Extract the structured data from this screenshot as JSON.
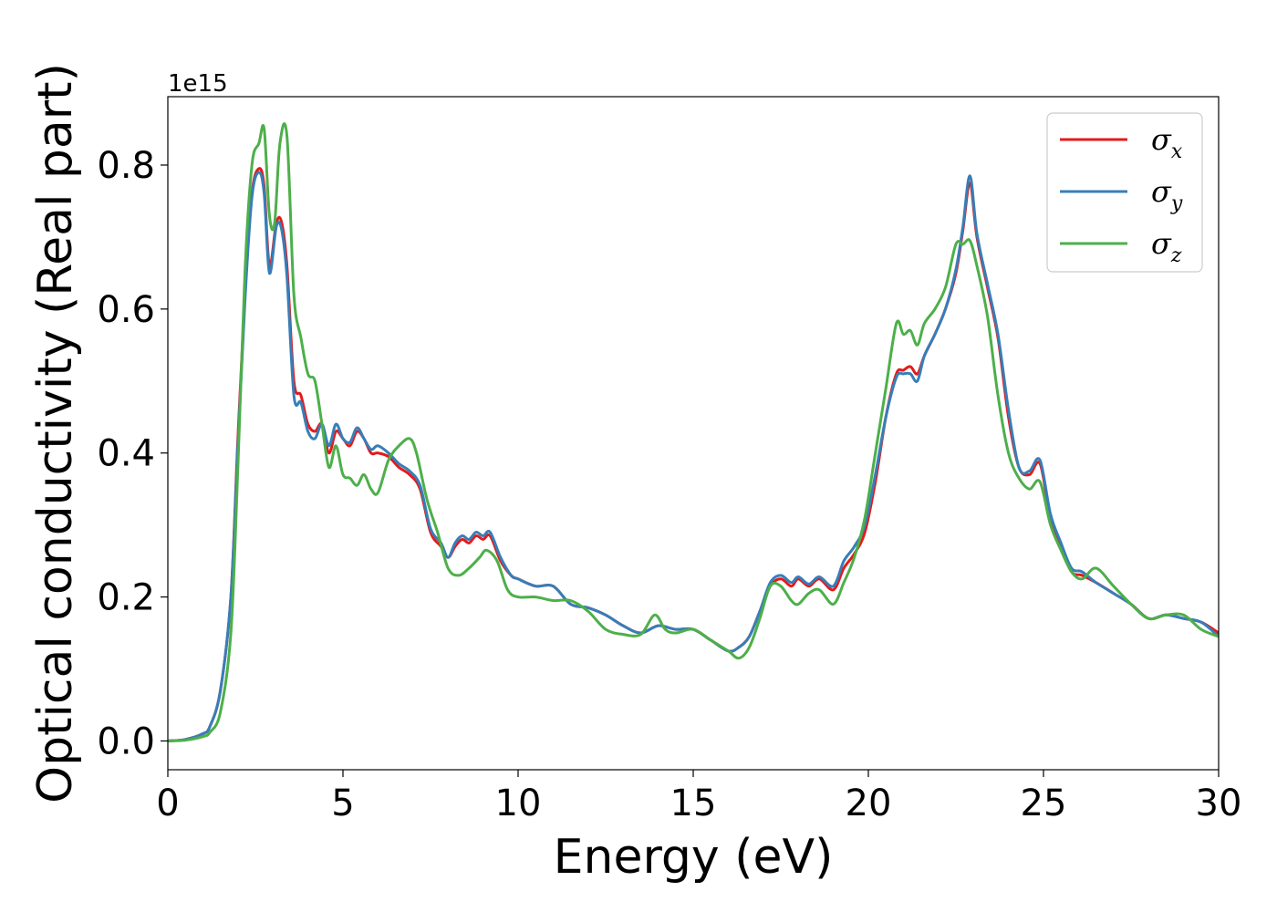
{
  "chart_data": {
    "type": "line",
    "xlabel": "Energy (eV)",
    "ylabel": "Optical conductivity (Real part)",
    "offset_text": "1e15",
    "xlim": [
      0,
      30
    ],
    "ylim": [
      -0.04,
      0.895
    ],
    "xticks": [
      0,
      5,
      10,
      15,
      20,
      25,
      30
    ],
    "xtick_labels": [
      "0",
      "5",
      "10",
      "15",
      "20",
      "25",
      "30"
    ],
    "yticks": [
      0.0,
      0.2,
      0.4,
      0.6,
      0.8
    ],
    "ytick_labels": [
      "0.0",
      "0.2",
      "0.4",
      "0.6",
      "0.8"
    ],
    "grid": false,
    "legend_position": "top-right",
    "series": [
      {
        "name": "σx",
        "legend_base": "σ",
        "legend_sub": "x",
        "color": "#e41a1c",
        "x": [
          0,
          0.5,
          1,
          1.2,
          1.5,
          1.8,
          2.0,
          2.2,
          2.4,
          2.6,
          2.75,
          2.9,
          3.1,
          3.25,
          3.4,
          3.6,
          3.8,
          4.0,
          4.2,
          4.4,
          4.6,
          4.8,
          5.0,
          5.2,
          5.4,
          5.6,
          5.8,
          6.0,
          6.3,
          6.6,
          6.9,
          7.2,
          7.5,
          7.8,
          8.0,
          8.2,
          8.4,
          8.6,
          8.8,
          9.0,
          9.2,
          9.5,
          9.8,
          10.0,
          10.5,
          11.0,
          11.5,
          12.0,
          12.5,
          13.0,
          13.5,
          14.0,
          14.5,
          15.0,
          15.5,
          16.0,
          16.3,
          16.6,
          16.9,
          17.2,
          17.5,
          17.8,
          18.0,
          18.3,
          18.6,
          19.0,
          19.3,
          19.6,
          19.9,
          20.2,
          20.5,
          20.8,
          21.0,
          21.2,
          21.4,
          21.6,
          21.9,
          22.2,
          22.5,
          22.7,
          22.9,
          23.1,
          23.4,
          23.7,
          24.0,
          24.3,
          24.6,
          24.9,
          25.2,
          25.5,
          25.8,
          26.1,
          26.5,
          27.0,
          27.5,
          28.0,
          28.5,
          29.0,
          29.5,
          30.0
        ],
        "y": [
          0.0,
          0.002,
          0.01,
          0.02,
          0.07,
          0.2,
          0.42,
          0.62,
          0.76,
          0.795,
          0.77,
          0.66,
          0.72,
          0.72,
          0.66,
          0.5,
          0.48,
          0.44,
          0.43,
          0.44,
          0.4,
          0.43,
          0.42,
          0.41,
          0.43,
          0.42,
          0.4,
          0.4,
          0.395,
          0.38,
          0.37,
          0.35,
          0.29,
          0.27,
          0.255,
          0.27,
          0.28,
          0.275,
          0.285,
          0.28,
          0.285,
          0.25,
          0.23,
          0.225,
          0.215,
          0.215,
          0.19,
          0.185,
          0.175,
          0.16,
          0.15,
          0.16,
          0.155,
          0.155,
          0.14,
          0.125,
          0.13,
          0.145,
          0.18,
          0.215,
          0.225,
          0.215,
          0.225,
          0.215,
          0.225,
          0.21,
          0.24,
          0.26,
          0.29,
          0.36,
          0.45,
          0.51,
          0.515,
          0.52,
          0.51,
          0.535,
          0.565,
          0.6,
          0.65,
          0.71,
          0.775,
          0.7,
          0.63,
          0.56,
          0.45,
          0.38,
          0.37,
          0.385,
          0.31,
          0.27,
          0.235,
          0.23,
          0.22,
          0.205,
          0.19,
          0.17,
          0.175,
          0.17,
          0.165,
          0.15
        ]
      },
      {
        "name": "σy",
        "legend_base": "σ",
        "legend_sub": "y",
        "color": "#377eb8",
        "x": [
          0,
          0.5,
          1,
          1.2,
          1.5,
          1.8,
          2.0,
          2.2,
          2.4,
          2.6,
          2.75,
          2.9,
          3.1,
          3.25,
          3.4,
          3.6,
          3.8,
          4.0,
          4.2,
          4.4,
          4.6,
          4.8,
          5.0,
          5.2,
          5.4,
          5.6,
          5.8,
          6.0,
          6.3,
          6.6,
          6.9,
          7.2,
          7.5,
          7.8,
          8.0,
          8.2,
          8.4,
          8.6,
          8.8,
          9.0,
          9.2,
          9.5,
          9.8,
          10.0,
          10.5,
          11.0,
          11.5,
          12.0,
          12.5,
          13.0,
          13.5,
          14.0,
          14.5,
          15.0,
          15.5,
          16.0,
          16.3,
          16.6,
          16.9,
          17.2,
          17.5,
          17.8,
          18.0,
          18.3,
          18.6,
          19.0,
          19.3,
          19.6,
          19.9,
          20.2,
          20.5,
          20.8,
          21.0,
          21.2,
          21.4,
          21.6,
          21.9,
          22.2,
          22.5,
          22.7,
          22.9,
          23.1,
          23.4,
          23.7,
          24.0,
          24.3,
          24.6,
          24.9,
          25.2,
          25.5,
          25.8,
          26.1,
          26.5,
          27.0,
          27.5,
          28.0,
          28.5,
          29.0,
          29.5,
          30.0
        ],
        "y": [
          0.0,
          0.002,
          0.01,
          0.02,
          0.07,
          0.2,
          0.41,
          0.61,
          0.755,
          0.79,
          0.76,
          0.65,
          0.715,
          0.71,
          0.645,
          0.48,
          0.47,
          0.43,
          0.42,
          0.44,
          0.41,
          0.44,
          0.42,
          0.415,
          0.435,
          0.42,
          0.405,
          0.41,
          0.4,
          0.385,
          0.375,
          0.355,
          0.295,
          0.275,
          0.255,
          0.275,
          0.285,
          0.28,
          0.29,
          0.285,
          0.29,
          0.255,
          0.23,
          0.225,
          0.215,
          0.215,
          0.19,
          0.185,
          0.175,
          0.16,
          0.15,
          0.16,
          0.155,
          0.155,
          0.14,
          0.125,
          0.13,
          0.145,
          0.18,
          0.22,
          0.23,
          0.22,
          0.228,
          0.218,
          0.228,
          0.215,
          0.25,
          0.27,
          0.3,
          0.37,
          0.45,
          0.505,
          0.51,
          0.51,
          0.5,
          0.535,
          0.565,
          0.6,
          0.655,
          0.715,
          0.785,
          0.705,
          0.635,
          0.565,
          0.46,
          0.38,
          0.375,
          0.39,
          0.315,
          0.275,
          0.24,
          0.235,
          0.22,
          0.205,
          0.19,
          0.17,
          0.175,
          0.17,
          0.165,
          0.145
        ]
      },
      {
        "name": "σz",
        "legend_base": "σ",
        "legend_sub": "z",
        "color": "#4daf4a",
        "x": [
          0,
          0.5,
          1,
          1.2,
          1.5,
          1.8,
          2.0,
          2.2,
          2.4,
          2.6,
          2.75,
          2.9,
          3.05,
          3.2,
          3.4,
          3.6,
          3.8,
          4.0,
          4.2,
          4.4,
          4.6,
          4.8,
          5.0,
          5.2,
          5.4,
          5.6,
          5.8,
          6.0,
          6.3,
          6.6,
          6.9,
          7.1,
          7.4,
          7.7,
          8.0,
          8.3,
          8.6,
          8.9,
          9.1,
          9.4,
          9.7,
          10.0,
          10.5,
          11.0,
          11.5,
          12.0,
          12.5,
          13.0,
          13.5,
          13.9,
          14.2,
          14.5,
          15.0,
          15.5,
          16.0,
          16.3,
          16.6,
          16.9,
          17.2,
          17.5,
          17.8,
          18.0,
          18.3,
          18.6,
          19.0,
          19.3,
          19.6,
          19.9,
          20.2,
          20.5,
          20.8,
          21.0,
          21.2,
          21.4,
          21.6,
          21.9,
          22.2,
          22.5,
          22.7,
          22.9,
          23.1,
          23.4,
          23.7,
          24.0,
          24.3,
          24.6,
          24.9,
          25.2,
          25.5,
          25.8,
          26.1,
          26.5,
          27.0,
          27.5,
          28.0,
          28.5,
          29.0,
          29.5,
          30.0
        ],
        "y": [
          0.0,
          0.001,
          0.006,
          0.012,
          0.04,
          0.15,
          0.38,
          0.65,
          0.8,
          0.83,
          0.85,
          0.73,
          0.72,
          0.83,
          0.84,
          0.62,
          0.56,
          0.51,
          0.5,
          0.44,
          0.38,
          0.41,
          0.37,
          0.365,
          0.355,
          0.37,
          0.35,
          0.345,
          0.39,
          0.41,
          0.42,
          0.4,
          0.335,
          0.29,
          0.24,
          0.23,
          0.24,
          0.255,
          0.265,
          0.25,
          0.21,
          0.2,
          0.2,
          0.195,
          0.195,
          0.18,
          0.155,
          0.148,
          0.148,
          0.175,
          0.155,
          0.15,
          0.155,
          0.14,
          0.125,
          0.115,
          0.13,
          0.17,
          0.215,
          0.215,
          0.195,
          0.19,
          0.205,
          0.21,
          0.19,
          0.22,
          0.255,
          0.31,
          0.4,
          0.49,
          0.58,
          0.565,
          0.57,
          0.55,
          0.58,
          0.6,
          0.63,
          0.69,
          0.69,
          0.695,
          0.66,
          0.59,
          0.48,
          0.4,
          0.365,
          0.35,
          0.36,
          0.3,
          0.265,
          0.235,
          0.225,
          0.24,
          0.215,
          0.19,
          0.17,
          0.175,
          0.175,
          0.155,
          0.145
        ]
      }
    ]
  }
}
